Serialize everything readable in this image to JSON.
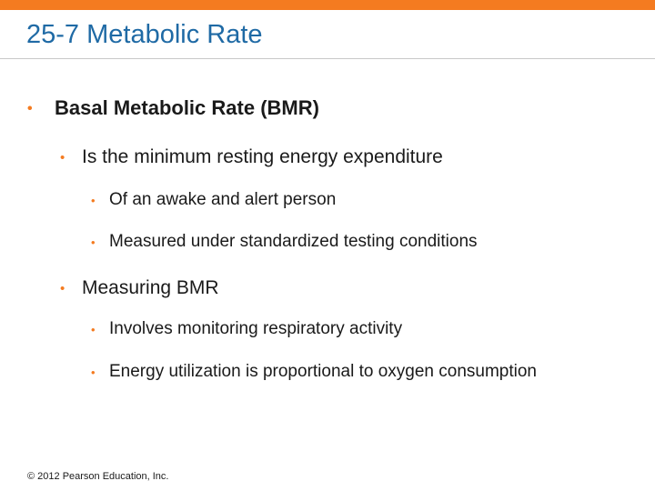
{
  "slide": {
    "title": "25-7 Metabolic Rate",
    "accent_color": "#f47b20",
    "title_color": "#1f6aa5",
    "bullet_glyph": "•",
    "bullets": [
      {
        "text": "Basal Metabolic Rate (BMR)",
        "children": [
          {
            "text": "Is the minimum resting energy expenditure",
            "children": [
              {
                "text": "Of an awake and alert person"
              },
              {
                "text": "Measured under standardized testing conditions"
              }
            ]
          }
        ]
      },
      {
        "text": "Measuring BMR",
        "children": [
          {
            "text": "Involves monitoring respiratory activity"
          },
          {
            "text": "Energy utilization is proportional to oxygen consumption"
          }
        ]
      }
    ],
    "footer": "© 2012 Pearson Education, Inc."
  }
}
